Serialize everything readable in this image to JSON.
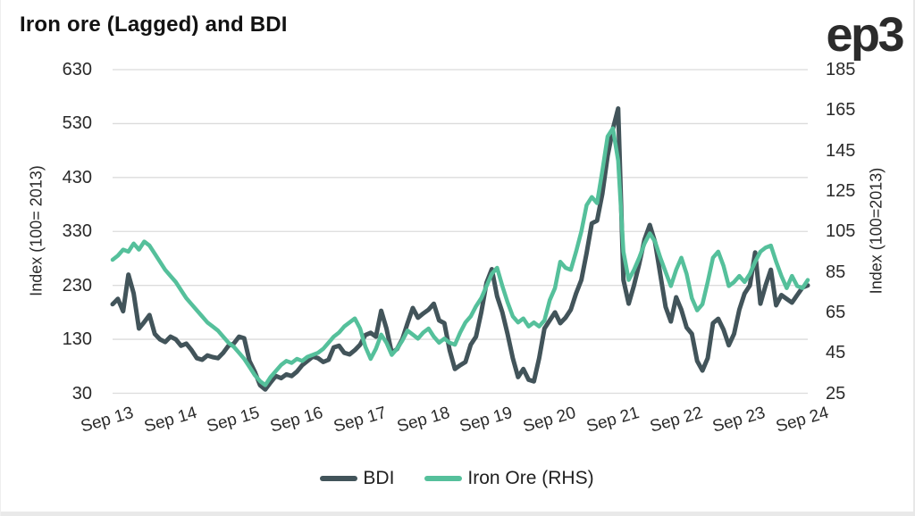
{
  "header": {
    "title": "Iron ore (Lagged) and BDI"
  },
  "branding": {
    "logo": "ep3",
    "logo_color": "#2b2b2b"
  },
  "chart_data": {
    "type": "line",
    "title": "Iron ore (Lagged) and BDI",
    "x_start": "Sep 2013",
    "x_end": "Sep 2024",
    "interval": "monthly",
    "grid": "horizontal-only",
    "grid_color": "#dcdcdc",
    "x_tick_labels": [
      "Sep 13",
      "Sep 14",
      "Sep 15",
      "Sep 16",
      "Sep 17",
      "Sep 18",
      "Sep 19",
      "Sep 20",
      "Sep 21",
      "Sep 22",
      "Sep 23",
      "Sep 24"
    ],
    "left_axis": {
      "label": "Index (100= 2013)",
      "range": [
        30,
        630
      ],
      "ticks": [
        30,
        130,
        230,
        330,
        430,
        530,
        630
      ]
    },
    "right_axis": {
      "label": "Index (100=2013)",
      "range": [
        25,
        185
      ],
      "ticks": [
        25,
        45,
        65,
        85,
        105,
        125,
        145,
        165,
        185
      ]
    },
    "legend_position": "bottom-center",
    "series": [
      {
        "name": "BDI",
        "axis": "left",
        "color": "#42545a",
        "stroke_width": 5,
        "values": [
          195,
          205,
          182,
          250,
          215,
          150,
          162,
          175,
          140,
          130,
          125,
          135,
          130,
          118,
          122,
          110,
          95,
          92,
          100,
          97,
          95,
          105,
          118,
          122,
          135,
          132,
          90,
          70,
          45,
          37,
          50,
          62,
          58,
          65,
          62,
          70,
          82,
          90,
          98,
          95,
          88,
          92,
          115,
          118,
          105,
          102,
          110,
          120,
          138,
          142,
          135,
          183,
          150,
          105,
          112,
          130,
          160,
          188,
          170,
          178,
          185,
          196,
          165,
          160,
          110,
          75,
          82,
          88,
          120,
          135,
          180,
          235,
          260,
          210,
          180,
          140,
          95,
          60,
          75,
          55,
          52,
          95,
          150,
          165,
          180,
          160,
          170,
          185,
          215,
          240,
          290,
          345,
          350,
          400,
          470,
          520,
          558,
          240,
          196,
          230,
          270,
          315,
          342,
          310,
          250,
          190,
          163,
          208,
          185,
          152,
          140,
          90,
          72,
          95,
          160,
          168,
          148,
          119,
          140,
          185,
          215,
          230,
          291,
          196,
          230,
          259,
          193,
          212,
          205,
          198,
          212,
          226,
          230
        ]
      },
      {
        "name": "Iron Ore (RHS)",
        "axis": "right",
        "color": "#55c09b",
        "stroke_width": 4.5,
        "values": [
          91,
          93,
          96,
          95,
          99,
          96,
          100,
          98,
          94,
          90,
          86,
          83,
          80,
          76,
          72,
          69,
          66,
          63,
          60,
          58,
          56,
          53,
          50,
          48,
          45,
          42,
          38,
          34,
          31,
          29,
          33,
          36,
          39,
          41,
          40,
          42,
          41,
          43,
          44,
          45,
          47,
          50,
          53,
          55,
          58,
          60,
          62,
          57,
          48,
          42,
          47,
          54,
          50,
          44,
          47,
          51,
          56,
          54,
          52,
          55,
          57,
          53,
          50,
          52,
          50,
          49,
          55,
          60,
          63,
          68,
          72,
          78,
          84,
          87,
          78,
          70,
          63,
          60,
          62,
          58,
          60,
          58,
          61,
          71,
          77,
          90,
          87,
          86,
          95,
          105,
          118,
          122,
          119,
          135,
          152,
          156,
          140,
          95,
          81,
          86,
          92,
          99,
          104,
          100,
          92,
          85,
          78,
          86,
          92,
          84,
          72,
          66,
          69,
          80,
          92,
          95,
          88,
          78,
          80,
          83,
          80,
          84,
          90,
          95,
          97,
          98,
          90,
          83,
          77,
          83,
          78,
          77,
          81
        ]
      }
    ]
  }
}
